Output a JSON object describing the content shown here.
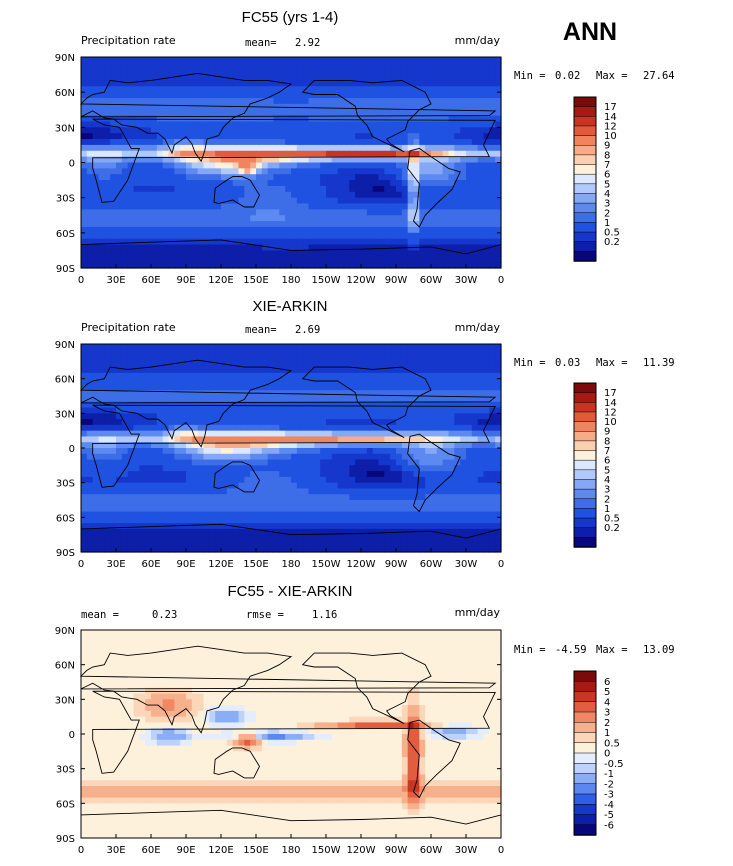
{
  "season": "ANN",
  "colors": {
    "abs_levels": [
      "#08067a",
      "#0d1fa8",
      "#1537cc",
      "#1f52e0",
      "#3d6ee8",
      "#5c8af0",
      "#84a8f5",
      "#b1c9fa",
      "#dce8fd",
      "#fdf1dc",
      "#fbd0b0",
      "#f6ac86",
      "#f0845e",
      "#e25a3a",
      "#c93422",
      "#a51a12",
      "#7c0a0a"
    ],
    "diff_levels": [
      "#08067a",
      "#0d1fa8",
      "#1537cc",
      "#2f5fe6",
      "#5a87f0",
      "#8aaef6",
      "#bcd2fb",
      "#e4edfd",
      "#fdf1dc",
      "#fbd6b8",
      "#f7b08c",
      "#f08864",
      "#e25d3f",
      "#c93624",
      "#a51b13",
      "#7c0a0a"
    ]
  },
  "chart_data": [
    {
      "type": "heatmap",
      "title": "FC55 (yrs 1-4)",
      "left_label": "Precipitation rate",
      "mean_label": "mean=",
      "mean_value": "2.92",
      "units": "mm/day",
      "min_label": "Min =",
      "min_value": "0.02",
      "max_label": "Max =",
      "max_value": "27.64",
      "x_ticks": [
        "0",
        "30E",
        "60E",
        "90E",
        "120E",
        "150E",
        "180",
        "150W",
        "120W",
        "90W",
        "60W",
        "30W",
        "0"
      ],
      "y_ticks": [
        "90N",
        "60N",
        "30N",
        "0",
        "30S",
        "60S",
        "90S"
      ],
      "colorbar_labels": [
        "17",
        "14",
        "12",
        "10",
        "9",
        "8",
        "7",
        "6",
        "5",
        "4",
        "3",
        "2",
        "1",
        "0.5",
        "0.2"
      ],
      "field": "model"
    },
    {
      "type": "heatmap",
      "title": "XIE-ARKIN",
      "left_label": "Precipitation rate",
      "mean_label": "mean=",
      "mean_value": "2.69",
      "units": "mm/day",
      "min_label": "Min =",
      "min_value": "0.03",
      "max_label": "Max =",
      "max_value": "11.39",
      "x_ticks": [
        "0",
        "30E",
        "60E",
        "90E",
        "120E",
        "150E",
        "180",
        "150W",
        "120W",
        "90W",
        "60W",
        "30W",
        "0"
      ],
      "y_ticks": [
        "90N",
        "60N",
        "30N",
        "0",
        "30S",
        "60S",
        "90S"
      ],
      "colorbar_labels": [
        "17",
        "14",
        "12",
        "10",
        "9",
        "8",
        "7",
        "6",
        "5",
        "4",
        "3",
        "2",
        "1",
        "0.5",
        "0.2"
      ],
      "field": "obs"
    },
    {
      "type": "heatmap",
      "title": "FC55 - XIE-ARKIN",
      "left_label": "mean =",
      "left_value": "0.23",
      "rmse_label": "rmse =",
      "rmse_value": "1.16",
      "units": "mm/day",
      "min_label": "Min =",
      "min_value": "-4.59",
      "max_label": "Max =",
      "max_value": "13.09",
      "x_ticks": [
        "0",
        "30E",
        "60E",
        "90E",
        "120E",
        "150E",
        "180",
        "150W",
        "120W",
        "90W",
        "60W",
        "30W",
        "0"
      ],
      "y_ticks": [
        "90N",
        "60N",
        "30N",
        "0",
        "30S",
        "60S",
        "90S"
      ],
      "colorbar_labels": [
        "6",
        "5",
        "4",
        "3",
        "2",
        "1",
        "0.5",
        "0",
        "-0.5",
        "-1",
        "-2",
        "-3",
        "-4",
        "-5",
        "-6"
      ],
      "field": "diff"
    }
  ]
}
